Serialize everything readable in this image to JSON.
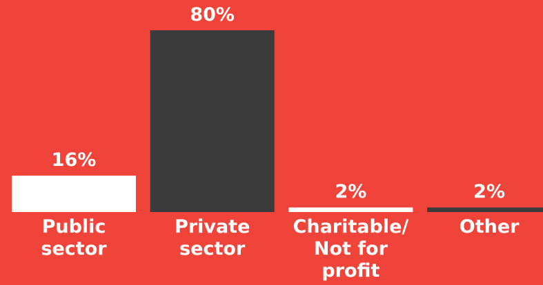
{
  "chart_data": {
    "type": "bar",
    "categories": [
      "Public sector",
      "Private sector",
      "Charitable/ Not for profit",
      "Other"
    ],
    "values": [
      16,
      80,
      2,
      2
    ],
    "value_labels": [
      "16%",
      "80%",
      "2%",
      "2%"
    ],
    "colors": [
      "#ffffff",
      "#3b3b3b",
      "#ffffff",
      "#3b3b3b"
    ],
    "background": "#f0433a"
  }
}
